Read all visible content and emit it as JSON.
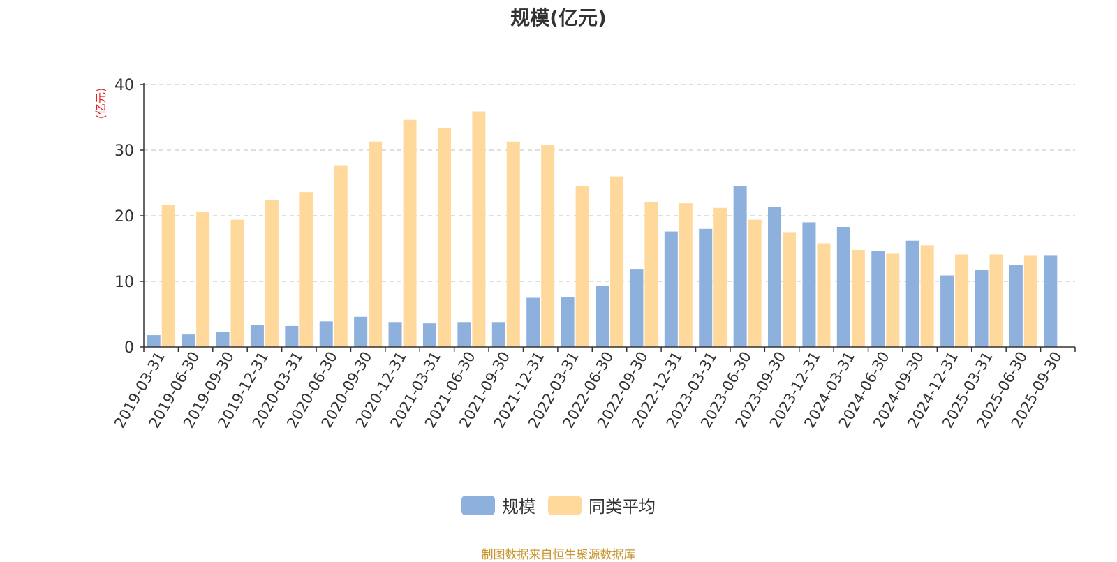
{
  "chart_data": {
    "type": "bar",
    "title": "规模(亿元)",
    "ylabel": "(亿元)",
    "ylim": [
      0,
      40
    ],
    "yticks": [
      0,
      10,
      20,
      30,
      40
    ],
    "grid": true,
    "legend_position": "bottom",
    "categories": [
      "2019-03-31",
      "2019-06-30",
      "2019-09-30",
      "2019-12-31",
      "2020-03-31",
      "2020-06-30",
      "2020-09-30",
      "2020-12-31",
      "2021-03-31",
      "2021-06-30",
      "2021-09-30",
      "2021-12-31",
      "2022-03-31",
      "2022-06-30",
      "2022-09-30",
      "2022-12-31",
      "2023-03-31",
      "2023-06-30",
      "2023-09-30",
      "2023-12-31",
      "2024-03-31",
      "2024-06-30",
      "2024-09-30",
      "2024-12-31",
      "2025-03-31",
      "2025-06-30",
      "2025-09-30"
    ],
    "series": [
      {
        "name": "规模",
        "color": "#8eb0dd",
        "values": [
          1.8,
          1.9,
          2.3,
          3.4,
          3.2,
          3.9,
          4.6,
          3.8,
          3.6,
          3.8,
          3.8,
          7.5,
          7.6,
          9.3,
          11.8,
          17.6,
          18.0,
          24.5,
          21.3,
          19.0,
          18.3,
          14.6,
          16.2,
          10.9,
          11.7,
          12.5,
          14.0
        ]
      },
      {
        "name": "同类平均",
        "color": "#ffd89b",
        "values": [
          21.6,
          20.6,
          19.4,
          22.4,
          23.6,
          27.6,
          31.3,
          34.6,
          33.3,
          35.9,
          31.3,
          30.8,
          24.5,
          26.0,
          22.1,
          21.9,
          21.2,
          19.4,
          17.4,
          15.8,
          14.8,
          14.2,
          15.5,
          14.1,
          14.1,
          14.0,
          null
        ]
      }
    ]
  },
  "source_note": "制图数据来自恒生聚源数据库",
  "colors": {
    "axis": "#333333",
    "grid": "#cccccc",
    "ylabel": "#e02020",
    "text": "#333333"
  }
}
